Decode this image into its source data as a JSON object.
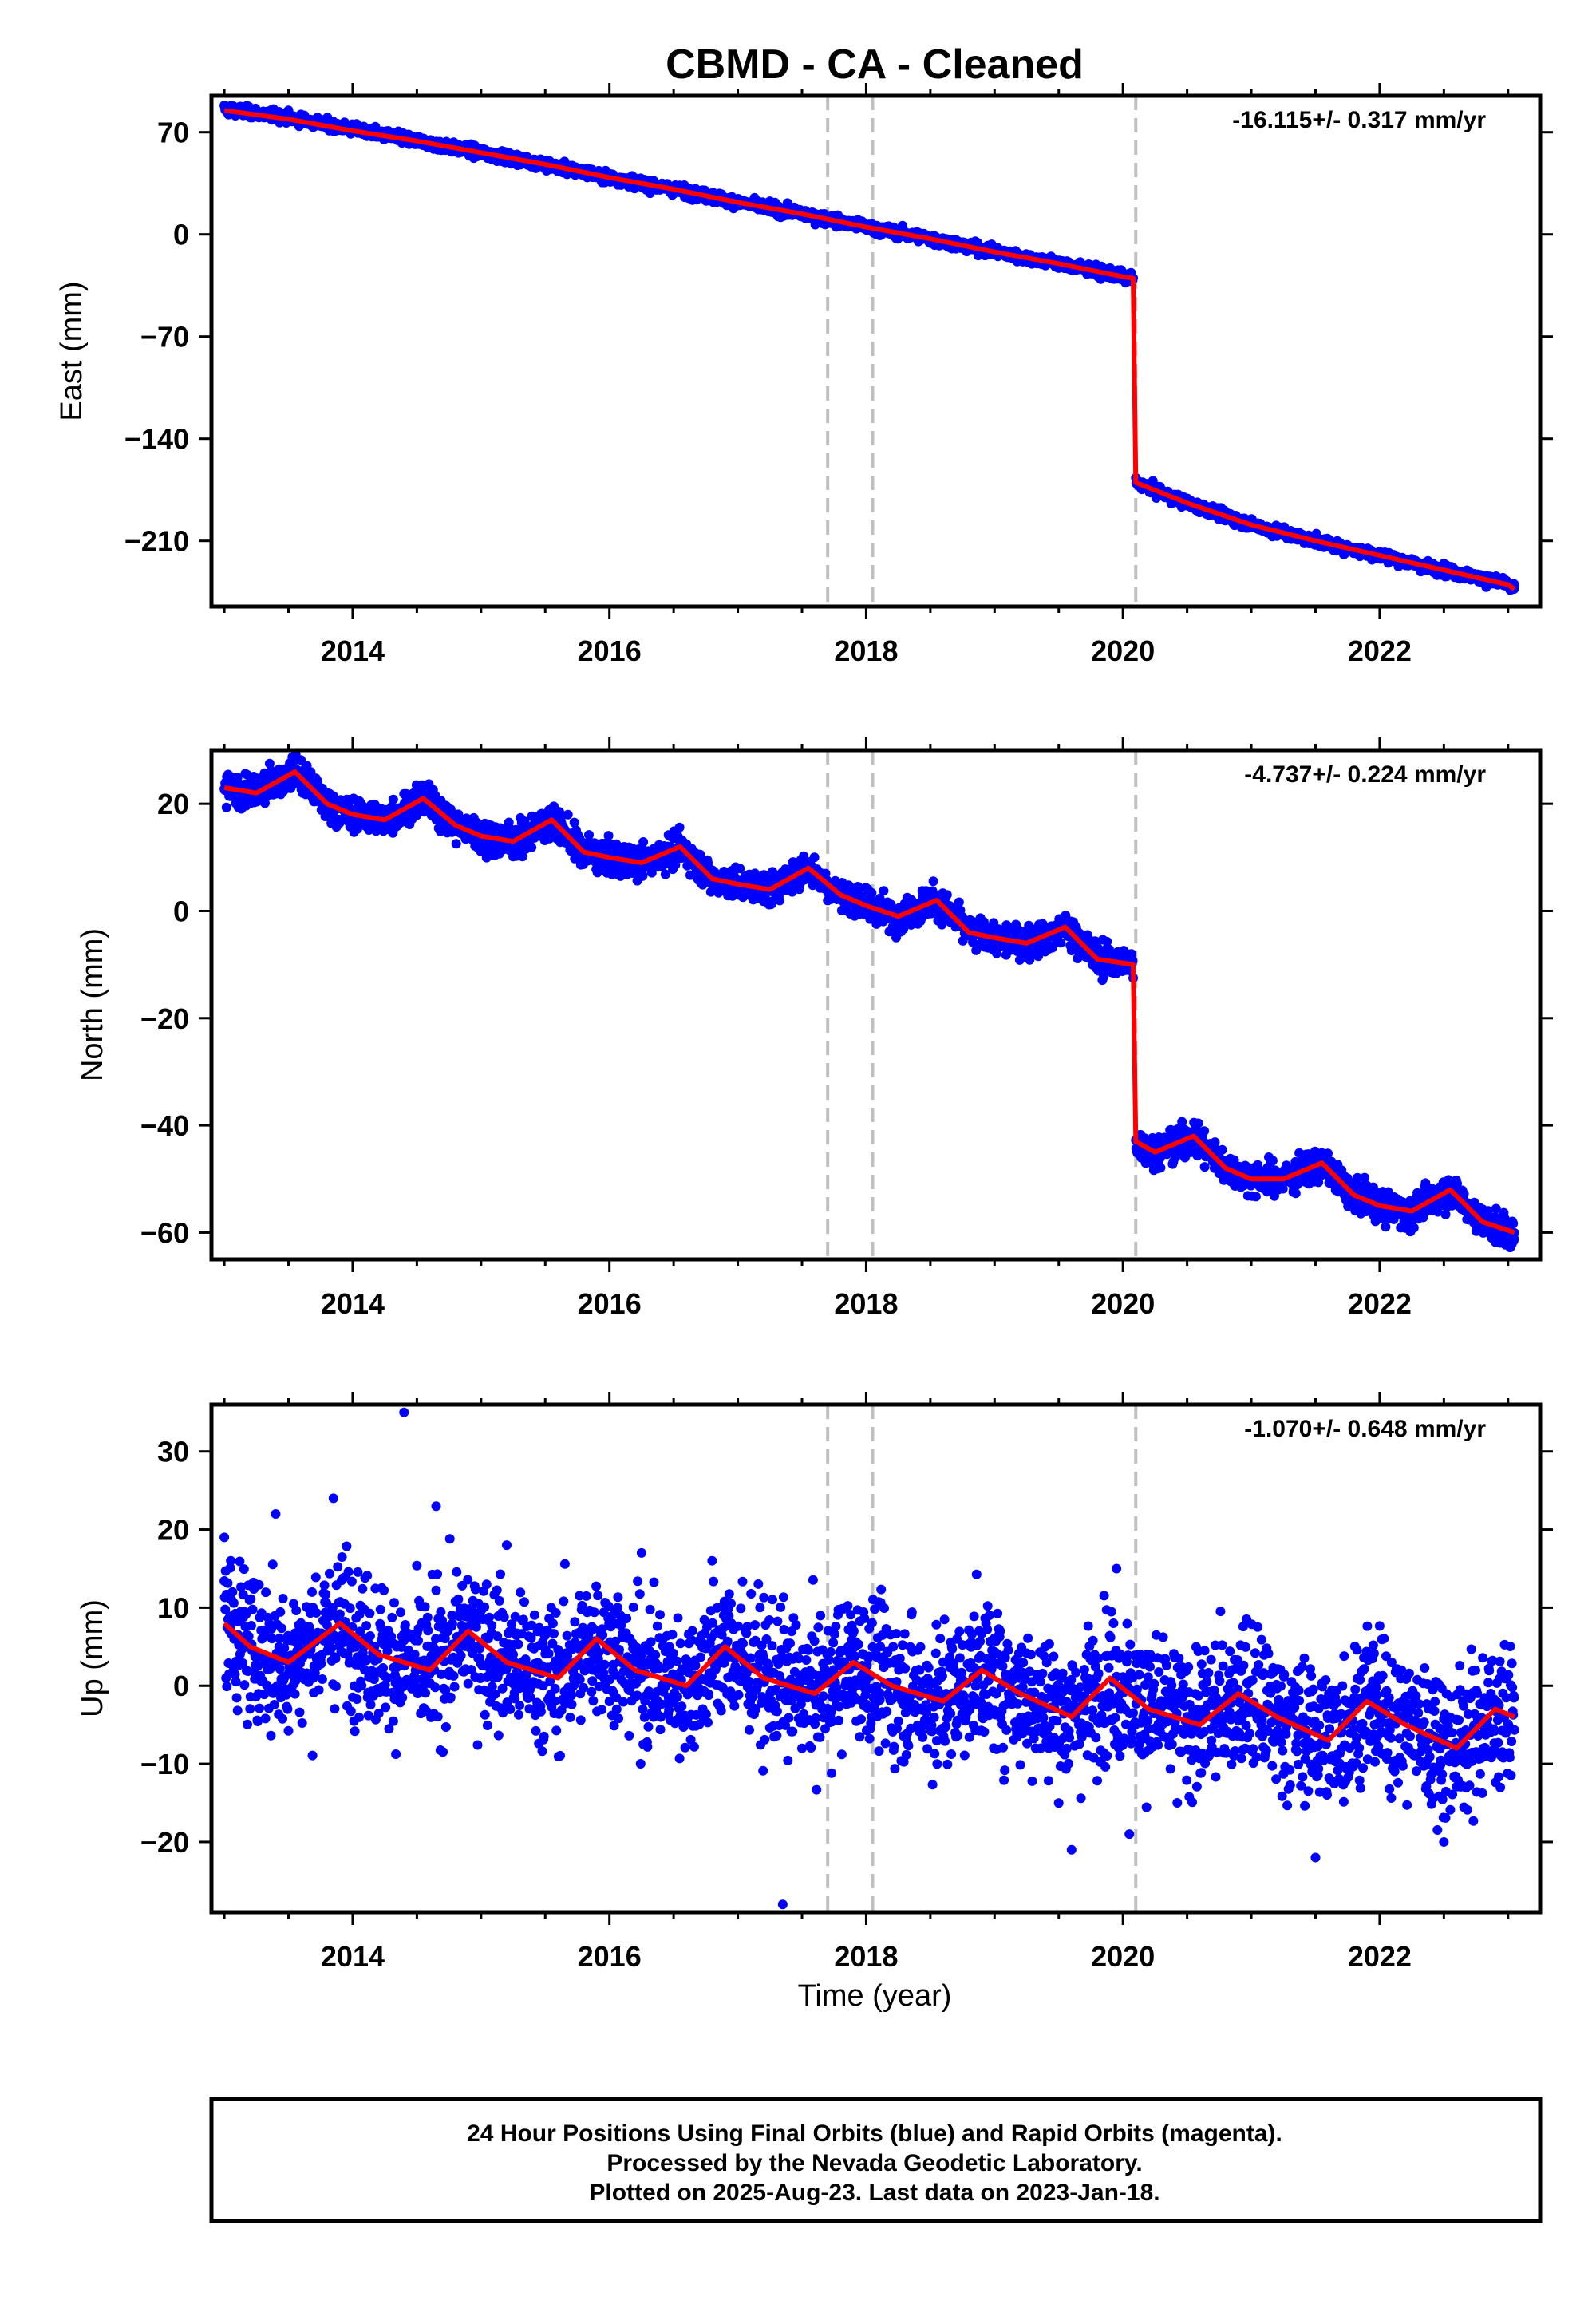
{
  "chart_data": {
    "title": "CBMD  - CA - Cleaned",
    "xlabel": "Time (year)",
    "xlim": [
      2012.9,
      2023.25
    ],
    "xticks": [
      2014,
      2016,
      2018,
      2020,
      2022
    ],
    "event_lines": [
      2017.7,
      2018.05,
      2020.1
    ],
    "colors": {
      "data": "#0000ff",
      "model": "#ff0000",
      "event": "#c0c0c0",
      "axes": "#000000"
    },
    "footer": [
      "24 Hour Positions Using Final Orbits (blue) and Rapid Orbits (magenta).",
      "Processed by the Nevada Geodetic Laboratory.",
      "Plotted on 2025-Aug-23. Last data on 2023-Jan-18."
    ],
    "panels": [
      {
        "type": "scatter",
        "component": "east",
        "ylabel": "East (mm)",
        "rate": "-16.115+/- 0.317 mm/yr",
        "ylim": [
          -255,
          95
        ],
        "yticks": [
          70,
          0,
          -70,
          -140,
          -210
        ],
        "series": [
          {
            "name": "data",
            "x": [
              2013.0,
              2013.5,
              2014.0,
              2014.5,
              2015.0,
              2015.5,
              2016.0,
              2016.5,
              2017.0,
              2017.5,
              2018.0,
              2018.5,
              2019.0,
              2019.5,
              2020.0,
              2020.08
            ],
            "y": [
              86,
              80,
              72,
              64,
              56,
              48,
              39,
              31,
              22,
              14,
              5,
              -3,
              -12,
              -20,
              -29,
              -30
            ],
            "noise": 1.8
          },
          {
            "name": "data",
            "x": [
              2020.1,
              2020.5,
              2021.0,
              2021.5,
              2022.0,
              2022.5,
              2023.0,
              2023.05
            ],
            "y": [
              -170,
              -184,
              -199,
              -210,
              -220,
              -230,
              -240,
              -243
            ],
            "noise": 1.8
          },
          {
            "name": "model",
            "x": [
              2013.0,
              2013.5,
              2014.0,
              2014.5,
              2015.0,
              2015.5,
              2016.0,
              2016.5,
              2017.0,
              2017.5,
              2018.0,
              2018.5,
              2019.0,
              2019.5,
              2020.0,
              2020.08,
              2020.1,
              2020.5,
              2021.0,
              2021.5,
              2022.0,
              2022.5,
              2023.0,
              2023.05
            ],
            "y": [
              85,
              79,
              71,
              64,
              56,
              48,
              39,
              31,
              22,
              14,
              5,
              -3,
              -12,
              -20,
              -29,
              -30,
              -170,
              -184,
              -199,
              -210,
              -220,
              -230,
              -240,
              -243
            ]
          }
        ]
      },
      {
        "type": "scatter",
        "component": "north",
        "ylabel": "North (mm)",
        "rate": "-4.737+/- 0.224 mm/yr",
        "ylim": [
          -65,
          30
        ],
        "yticks": [
          20,
          0,
          -20,
          -40,
          -60
        ],
        "series": [
          {
            "name": "data",
            "x": [
              2013.0,
              2013.25,
              2013.55,
              2013.8,
              2014.0,
              2014.25,
              2014.55,
              2014.8,
              2015.0,
              2015.25,
              2015.55,
              2015.8,
              2016.0,
              2016.25,
              2016.55,
              2016.8,
              2017.0,
              2017.25,
              2017.55,
              2017.8,
              2018.0,
              2018.25,
              2018.55,
              2018.8,
              2019.0,
              2019.25,
              2019.55,
              2019.8,
              2020.08
            ],
            "y": [
              23,
              22,
              26,
              20,
              18,
              17,
              21,
              16,
              14,
              13,
              17,
              11,
              10,
              9,
              12,
              6,
              5,
              4,
              8,
              3,
              1,
              -1,
              2,
              -4,
              -5,
              -6,
              -3,
              -9,
              -10
            ],
            "noise": 1.5
          },
          {
            "name": "data",
            "x": [
              2020.1,
              2020.25,
              2020.55,
              2020.8,
              2021.0,
              2021.25,
              2021.55,
              2021.8,
              2022.0,
              2022.25,
              2022.55,
              2022.8,
              2023.05
            ],
            "y": [
              -43,
              -45,
              -42,
              -48,
              -50,
              -50,
              -47,
              -53,
              -55,
              -56,
              -52,
              -58,
              -60
            ],
            "noise": 1.5
          },
          {
            "name": "model",
            "x": [
              2013.0,
              2013.25,
              2013.55,
              2013.8,
              2014.0,
              2014.25,
              2014.55,
              2014.8,
              2015.0,
              2015.25,
              2015.55,
              2015.8,
              2016.0,
              2016.25,
              2016.55,
              2016.8,
              2017.0,
              2017.25,
              2017.55,
              2017.8,
              2018.0,
              2018.25,
              2018.55,
              2018.8,
              2019.0,
              2019.25,
              2019.55,
              2019.8,
              2020.08,
              2020.1,
              2020.25,
              2020.55,
              2020.8,
              2021.0,
              2021.25,
              2021.55,
              2021.8,
              2022.0,
              2022.25,
              2022.55,
              2022.8,
              2023.05
            ],
            "y": [
              23,
              22,
              26,
              20,
              18,
              17,
              21,
              16,
              14,
              13,
              17,
              11,
              10,
              9,
              12,
              6,
              5,
              4,
              8,
              3,
              1,
              -1,
              2,
              -4,
              -5,
              -6,
              -3,
              -9,
              -10,
              -43,
              -45,
              -42,
              -48,
              -50,
              -50,
              -47,
              -53,
              -55,
              -56,
              -52,
              -58,
              -60
            ]
          }
        ]
      },
      {
        "type": "scatter",
        "component": "up",
        "ylabel": "Up (mm)",
        "rate": "-1.070+/- 0.648 mm/yr",
        "ylim": [
          -29,
          36
        ],
        "yticks": [
          30,
          20,
          10,
          0,
          -10,
          -20
        ],
        "series": [
          {
            "name": "data",
            "x": [
              2013.0,
              2013.2,
              2013.5,
              2013.9,
              2014.2,
              2014.6,
              2014.9,
              2015.2,
              2015.6,
              2015.9,
              2016.2,
              2016.6,
              2016.9,
              2017.2,
              2017.6,
              2017.9,
              2018.2,
              2018.6,
              2018.9,
              2019.2,
              2019.6,
              2019.9,
              2020.2,
              2020.6,
              2020.9,
              2021.2,
              2021.6,
              2021.9,
              2022.2,
              2022.6,
              2022.9,
              2023.05
            ],
            "y": [
              8,
              5,
              3,
              8,
              4,
              2,
              7,
              3,
              1,
              6,
              2,
              0,
              5,
              1,
              -1,
              3,
              0,
              -2,
              2,
              -1,
              -4,
              1,
              -3,
              -5,
              -1,
              -4,
              -7,
              -2,
              -5,
              -8,
              -3,
              -4
            ],
            "noise": 4.5
          },
          {
            "name": "model",
            "x": [
              2013.0,
              2013.2,
              2013.5,
              2013.9,
              2014.2,
              2014.6,
              2014.9,
              2015.2,
              2015.6,
              2015.9,
              2016.2,
              2016.6,
              2016.9,
              2017.2,
              2017.6,
              2017.9,
              2018.2,
              2018.6,
              2018.9,
              2019.2,
              2019.6,
              2019.9,
              2020.2,
              2020.6,
              2020.9,
              2021.2,
              2021.6,
              2021.9,
              2022.2,
              2022.6,
              2022.9,
              2023.05
            ],
            "y": [
              8,
              5,
              3,
              8,
              4,
              2,
              7,
              3,
              1,
              6,
              2,
              0,
              5,
              1,
              -1,
              3,
              0,
              -2,
              2,
              -1,
              -4,
              1,
              -3,
              -5,
              -1,
              -4,
              -7,
              -2,
              -5,
              -8,
              -3,
              -4
            ]
          },
          {
            "name": "outliers",
            "x": [
              2013.0,
              2013.05,
              2013.4,
              2013.85,
              2014.4,
              2014.65,
              2015.2,
              2016.25,
              2016.8,
              2017.35,
              2019.6,
              2019.95,
              2020.05,
              2021.5,
              2022.5
            ],
            "y": [
              19,
              16,
              22,
              24,
              35,
              23,
              18,
              17,
              16,
              -28,
              -21,
              15,
              -19,
              -22,
              -20
            ]
          }
        ]
      }
    ]
  }
}
